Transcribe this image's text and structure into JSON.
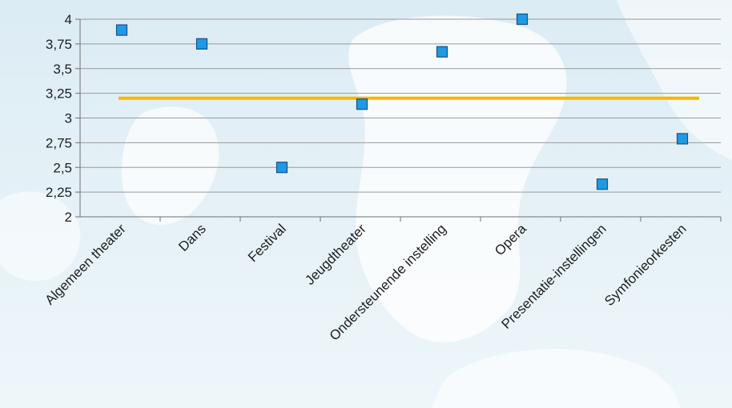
{
  "chart_data": {
    "type": "scatter",
    "title": "",
    "xlabel": "",
    "ylabel": "",
    "categories": [
      "Algemeen theater",
      "Dans",
      "Festival",
      "Jeugdtheater",
      "Ondersteunende instelling",
      "Opera",
      "Presentatie-instellingen",
      "Symfonieorkesten"
    ],
    "values": [
      3.89,
      3.75,
      2.5,
      3.14,
      3.67,
      4.0,
      2.33,
      2.79
    ],
    "reference_line": 3.2,
    "ylim": [
      2,
      4
    ],
    "yticks": [
      2,
      2.25,
      2.5,
      2.75,
      3,
      3.25,
      3.5,
      3.75,
      4
    ],
    "ytick_labels": [
      "2",
      "2,25",
      "2,5",
      "2,75",
      "3",
      "3,25",
      "3,5",
      "3,75",
      "4"
    ],
    "grid": true,
    "colors": {
      "marker": "#1e9ae6",
      "marker_edge": "#1a4f86",
      "reference_line": "#f5b800",
      "grid": "#9a9a9a",
      "axis": "#6e6e6e"
    }
  }
}
